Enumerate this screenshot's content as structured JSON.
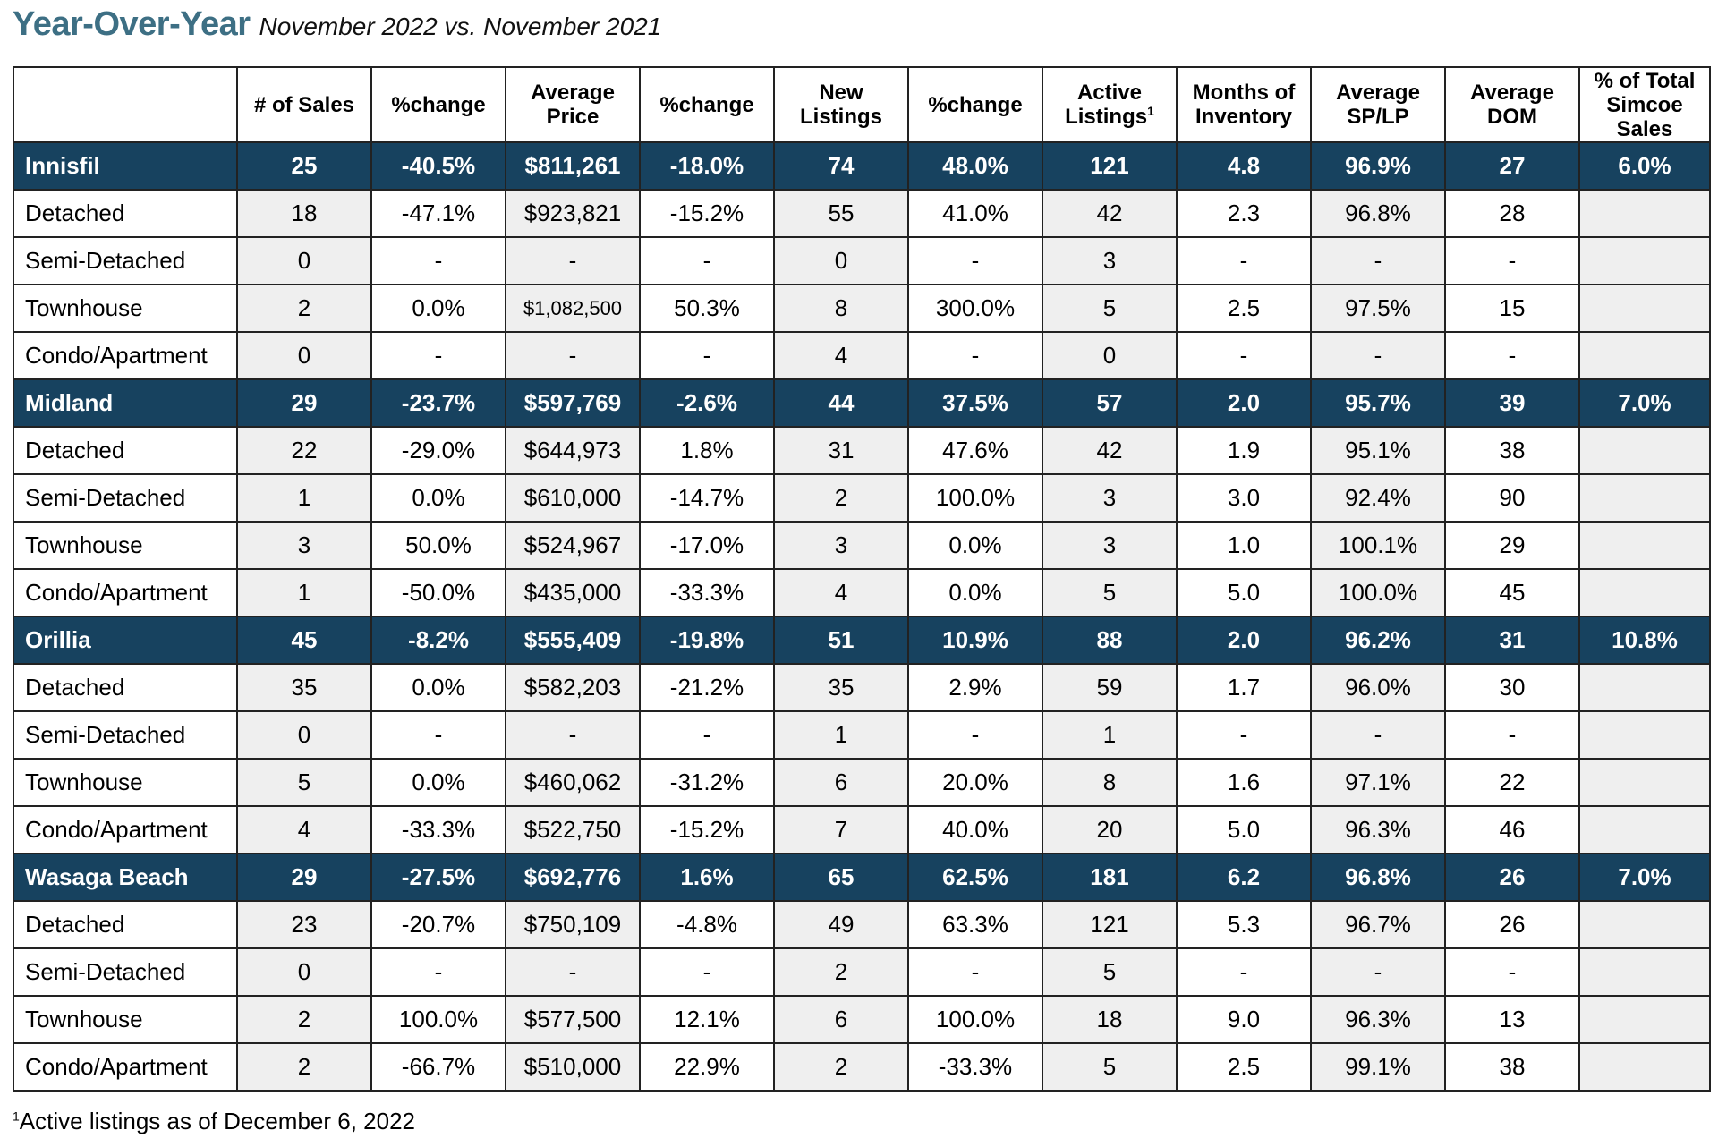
{
  "title": {
    "main": "Year-Over-Year",
    "subtitle": "November 2022 vs. November 2021"
  },
  "headers": {
    "blank": "",
    "sales": "# of Sales",
    "sales_change": "%change",
    "avg_price": "Average Price",
    "avg_price_change": "%change",
    "new_listings": "New Listings",
    "new_listings_change": "%change",
    "active_listings": "Active Listings",
    "active_listings_sup": "1",
    "months_inventory": "Months of Inventory",
    "avg_sp_lp": "Average SP/LP",
    "avg_dom": "Average DOM",
    "pct_total": "% of Total Simcoe Sales"
  },
  "rows": [
    {
      "type": "summary",
      "cells": [
        "Innisfil",
        "25",
        "-40.5%",
        "$811,261",
        "-18.0%",
        "74",
        "48.0%",
        "121",
        "4.8",
        "96.9%",
        "27",
        "6.0%"
      ]
    },
    {
      "type": "detail",
      "cells": [
        "Detached",
        "18",
        "-47.1%",
        "$923,821",
        "-15.2%",
        "55",
        "41.0%",
        "42",
        "2.3",
        "96.8%",
        "28",
        ""
      ]
    },
    {
      "type": "detail",
      "cells": [
        "Semi-Detached",
        "0",
        "-",
        "-",
        "-",
        "0",
        "-",
        "3",
        "-",
        "-",
        "-",
        ""
      ]
    },
    {
      "type": "detail",
      "cells": [
        "Townhouse",
        "2",
        "0.0%",
        "$1,082,500",
        "50.3%",
        "8",
        "300.0%",
        "5",
        "2.5",
        "97.5%",
        "15",
        ""
      ]
    },
    {
      "type": "detail",
      "cells": [
        "Condo/Apartment",
        "0",
        "-",
        "-",
        "-",
        "4",
        "-",
        "0",
        "-",
        "-",
        "-",
        ""
      ]
    },
    {
      "type": "summary",
      "cells": [
        "Midland",
        "29",
        "-23.7%",
        "$597,769",
        "-2.6%",
        "44",
        "37.5%",
        "57",
        "2.0",
        "95.7%",
        "39",
        "7.0%"
      ]
    },
    {
      "type": "detail",
      "cells": [
        "Detached",
        "22",
        "-29.0%",
        "$644,973",
        "1.8%",
        "31",
        "47.6%",
        "42",
        "1.9",
        "95.1%",
        "38",
        ""
      ]
    },
    {
      "type": "detail",
      "cells": [
        "Semi-Detached",
        "1",
        "0.0%",
        "$610,000",
        "-14.7%",
        "2",
        "100.0%",
        "3",
        "3.0",
        "92.4%",
        "90",
        ""
      ]
    },
    {
      "type": "detail",
      "cells": [
        "Townhouse",
        "3",
        "50.0%",
        "$524,967",
        "-17.0%",
        "3",
        "0.0%",
        "3",
        "1.0",
        "100.1%",
        "29",
        ""
      ]
    },
    {
      "type": "detail",
      "cells": [
        "Condo/Apartment",
        "1",
        "-50.0%",
        "$435,000",
        "-33.3%",
        "4",
        "0.0%",
        "5",
        "5.0",
        "100.0%",
        "45",
        ""
      ]
    },
    {
      "type": "summary",
      "cells": [
        "Orillia",
        "45",
        "-8.2%",
        "$555,409",
        "-19.8%",
        "51",
        "10.9%",
        "88",
        "2.0",
        "96.2%",
        "31",
        "10.8%"
      ]
    },
    {
      "type": "detail",
      "cells": [
        "Detached",
        "35",
        "0.0%",
        "$582,203",
        "-21.2%",
        "35",
        "2.9%",
        "59",
        "1.7",
        "96.0%",
        "30",
        ""
      ]
    },
    {
      "type": "detail",
      "cells": [
        "Semi-Detached",
        "0",
        "-",
        "-",
        "-",
        "1",
        "-",
        "1",
        "-",
        "-",
        "-",
        ""
      ]
    },
    {
      "type": "detail",
      "cells": [
        "Townhouse",
        "5",
        "0.0%",
        "$460,062",
        "-31.2%",
        "6",
        "20.0%",
        "8",
        "1.6",
        "97.1%",
        "22",
        ""
      ]
    },
    {
      "type": "detail",
      "cells": [
        "Condo/Apartment",
        "4",
        "-33.3%",
        "$522,750",
        "-15.2%",
        "7",
        "40.0%",
        "20",
        "5.0",
        "96.3%",
        "46",
        ""
      ]
    },
    {
      "type": "summary",
      "cells": [
        "Wasaga Beach",
        "29",
        "-27.5%",
        "$692,776",
        "1.6%",
        "65",
        "62.5%",
        "181",
        "6.2",
        "96.8%",
        "26",
        "7.0%"
      ]
    },
    {
      "type": "detail",
      "cells": [
        "Detached",
        "23",
        "-20.7%",
        "$750,109",
        "-4.8%",
        "49",
        "63.3%",
        "121",
        "5.3",
        "96.7%",
        "26",
        ""
      ]
    },
    {
      "type": "detail",
      "cells": [
        "Semi-Detached",
        "0",
        "-",
        "-",
        "-",
        "2",
        "-",
        "5",
        "-",
        "-",
        "-",
        ""
      ]
    },
    {
      "type": "detail",
      "cells": [
        "Townhouse",
        "2",
        "100.0%",
        "$577,500",
        "12.1%",
        "6",
        "100.0%",
        "18",
        "9.0",
        "96.3%",
        "13",
        ""
      ]
    },
    {
      "type": "detail",
      "cells": [
        "Condo/Apartment",
        "2",
        "-66.7%",
        "$510,000",
        "22.9%",
        "2",
        "-33.3%",
        "5",
        "2.5",
        "99.1%",
        "38",
        ""
      ]
    }
  ],
  "footnote": {
    "marker": "1",
    "text": "Active listings as of December 6, 2022"
  },
  "colors": {
    "title": "#3d6f84",
    "summary_row_bg": "#17425f",
    "summary_row_text": "#ffffff",
    "shaded_cell": "#efefef"
  }
}
